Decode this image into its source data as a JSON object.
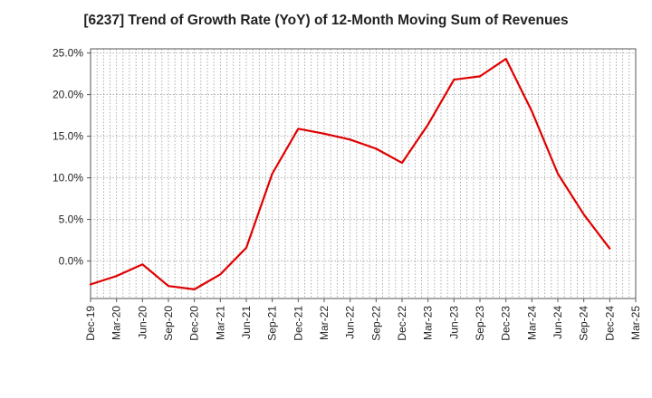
{
  "chart_data": {
    "type": "line",
    "title": "[6237]  Trend of Growth Rate (YoY) of 12-Month Moving Sum of Revenues",
    "xlabel": "",
    "ylabel": "",
    "x_tick_labels": [
      "Dec-19",
      "Mar-20",
      "Jun-20",
      "Sep-20",
      "Dec-20",
      "Mar-21",
      "Jun-21",
      "Sep-21",
      "Dec-21",
      "Mar-22",
      "Jun-22",
      "Sep-22",
      "Dec-22",
      "Mar-23",
      "Jun-23",
      "Sep-23",
      "Dec-23",
      "Mar-24",
      "Jun-24",
      "Sep-24",
      "Dec-24",
      "Mar-25"
    ],
    "y_tick_labels": [
      "25.0%",
      "20.0%",
      "15.0%",
      "10.0%",
      "5.0%",
      "0.0%"
    ],
    "y_ticks": [
      25,
      20,
      15,
      10,
      5,
      0
    ],
    "ylim": [
      -4.5,
      25.5
    ],
    "grid": true,
    "line_color": "#e00000",
    "series": [
      {
        "x": [
          "Dec-19",
          "Mar-20",
          "Jun-20",
          "Sep-20",
          "Dec-20",
          "Mar-21",
          "Jun-21",
          "Sep-21",
          "Dec-21",
          "Mar-22",
          "Jun-22",
          "Sep-22",
          "Dec-22",
          "Mar-23",
          "Jun-23",
          "Sep-23",
          "Dec-23",
          "Mar-24",
          "Jun-24",
          "Sep-24",
          "Dec-24"
        ],
        "values": [
          -2.8,
          -1.8,
          -0.4,
          -3.0,
          -3.4,
          -1.6,
          1.6,
          10.5,
          15.9,
          15.3,
          14.6,
          13.5,
          11.8,
          16.4,
          21.8,
          22.2,
          24.3,
          18.0,
          10.5,
          5.6,
          1.5
        ]
      }
    ]
  }
}
